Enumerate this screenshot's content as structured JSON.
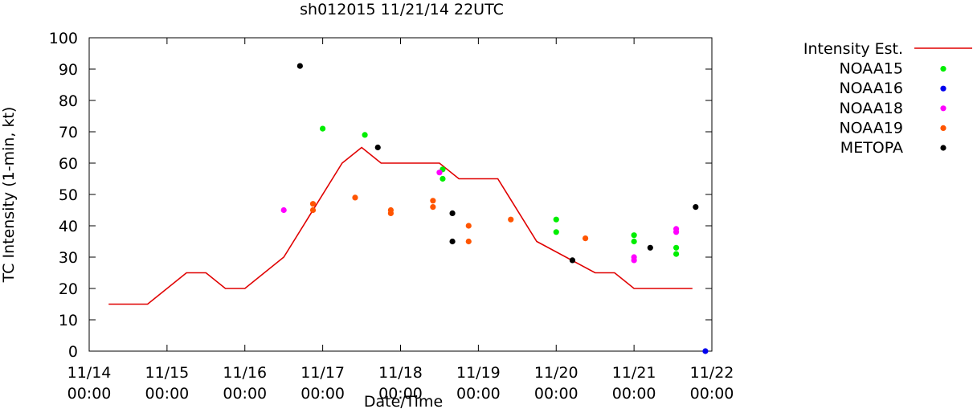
{
  "chart_data": {
    "type": "scatter",
    "title": "sh012015 11/21/14 22UTC",
    "xlabel": "Date/Time",
    "ylabel": "TC Intensity (1-min, kt)",
    "x_unit": "date",
    "xlim": [
      "2014-11-14 00:00",
      "2014-11-22 00:00"
    ],
    "ylim": [
      0,
      100
    ],
    "grid": false,
    "legend_position": "right, outside plot",
    "x_ticks": [
      {
        "date": "11/14",
        "time": "00:00"
      },
      {
        "date": "11/15",
        "time": "00:00"
      },
      {
        "date": "11/16",
        "time": "00:00"
      },
      {
        "date": "11/17",
        "time": "00:00"
      },
      {
        "date": "11/18",
        "time": "00:00"
      },
      {
        "date": "11/19",
        "time": "00:00"
      },
      {
        "date": "11/20",
        "time": "00:00"
      },
      {
        "date": "11/21",
        "time": "00:00"
      },
      {
        "date": "11/22",
        "time": "00:00"
      }
    ],
    "y_ticks": [
      "0",
      "10",
      "20",
      "30",
      "40",
      "50",
      "60",
      "70",
      "80",
      "90",
      "100"
    ],
    "series": [
      {
        "name": "Intensity Est.",
        "kind": "line",
        "color": "#e00000",
        "points": [
          [
            "2014-11-14 06:00",
            15
          ],
          [
            "2014-11-14 18:00",
            15
          ],
          [
            "2014-11-15 06:00",
            25
          ],
          [
            "2014-11-15 12:00",
            25
          ],
          [
            "2014-11-15 18:00",
            20
          ],
          [
            "2014-11-16 00:00",
            20
          ],
          [
            "2014-11-16 12:00",
            30
          ],
          [
            "2014-11-17 06:00",
            60
          ],
          [
            "2014-11-17 12:00",
            65
          ],
          [
            "2014-11-17 18:00",
            60
          ],
          [
            "2014-11-18 12:00",
            60
          ],
          [
            "2014-11-18 18:00",
            55
          ],
          [
            "2014-11-19 06:00",
            55
          ],
          [
            "2014-11-19 18:00",
            35
          ],
          [
            "2014-11-20 12:00",
            25
          ],
          [
            "2014-11-20 18:00",
            25
          ],
          [
            "2014-11-21 00:00",
            20
          ],
          [
            "2014-11-21 18:00",
            20
          ]
        ]
      },
      {
        "name": "NOAA15",
        "kind": "points",
        "color": "#00ee00",
        "points": [
          [
            "2014-11-17 00:00",
            71
          ],
          [
            "2014-11-17 13:00",
            69
          ],
          [
            "2014-11-18 13:00",
            58
          ],
          [
            "2014-11-18 13:00",
            55
          ],
          [
            "2014-11-20 00:00",
            42
          ],
          [
            "2014-11-20 00:00",
            38
          ],
          [
            "2014-11-21 00:00",
            37
          ],
          [
            "2014-11-21 00:00",
            35
          ],
          [
            "2014-11-21 13:00",
            33
          ],
          [
            "2014-11-21 13:00",
            31
          ]
        ]
      },
      {
        "name": "NOAA16",
        "kind": "points",
        "color": "#0000ee",
        "points": [
          [
            "2014-11-21 22:00",
            0
          ]
        ]
      },
      {
        "name": "NOAA18",
        "kind": "points",
        "color": "#ff00ff",
        "points": [
          [
            "2014-11-16 12:00",
            45
          ],
          [
            "2014-11-18 12:00",
            57
          ],
          [
            "2014-11-21 00:00",
            30
          ],
          [
            "2014-11-21 00:00",
            29
          ],
          [
            "2014-11-21 13:00",
            39
          ],
          [
            "2014-11-21 13:00",
            38
          ]
        ]
      },
      {
        "name": "NOAA19",
        "kind": "points",
        "color": "#ff5500",
        "points": [
          [
            "2014-11-16 21:00",
            47
          ],
          [
            "2014-11-16 21:00",
            45
          ],
          [
            "2014-11-17 10:00",
            49
          ],
          [
            "2014-11-17 21:00",
            45
          ],
          [
            "2014-11-17 21:00",
            44
          ],
          [
            "2014-11-18 10:00",
            48
          ],
          [
            "2014-11-18 10:00",
            46
          ],
          [
            "2014-11-18 21:00",
            40
          ],
          [
            "2014-11-18 21:00",
            35
          ],
          [
            "2014-11-19 10:00",
            42
          ],
          [
            "2014-11-20 09:00",
            36
          ]
        ]
      },
      {
        "name": "METOPA",
        "kind": "points",
        "color": "#000000",
        "points": [
          [
            "2014-11-16 17:00",
            91
          ],
          [
            "2014-11-17 17:00",
            65
          ],
          [
            "2014-11-18 16:00",
            44
          ],
          [
            "2014-11-18 16:00",
            35
          ],
          [
            "2014-11-20 05:00",
            29
          ],
          [
            "2014-11-21 05:00",
            33
          ],
          [
            "2014-11-21 19:00",
            46
          ]
        ]
      }
    ]
  }
}
